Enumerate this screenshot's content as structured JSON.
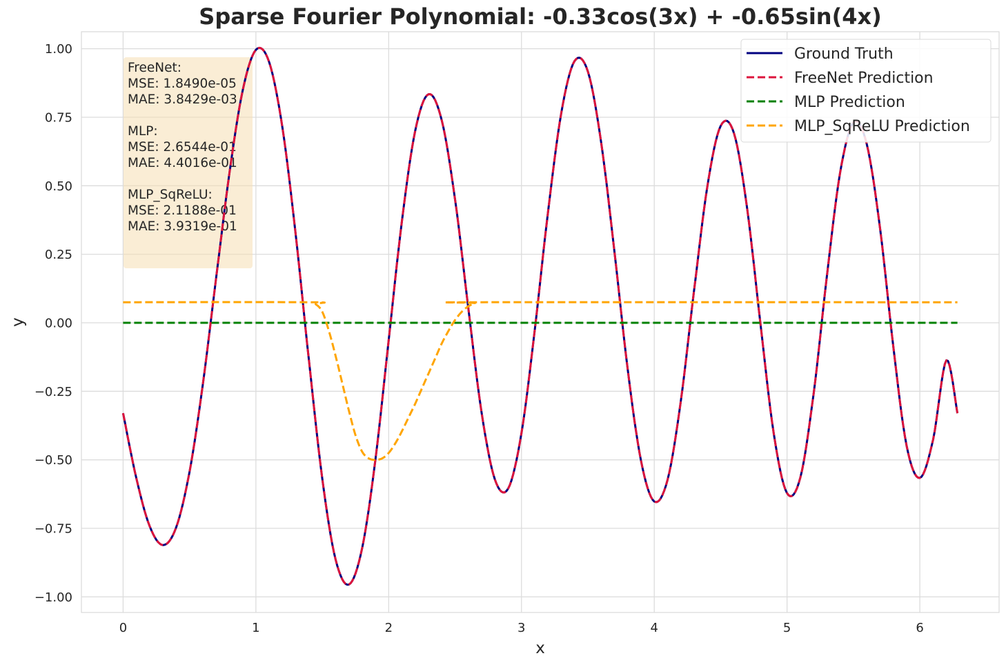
{
  "chart_data": {
    "type": "line",
    "title": "Sparse Fourier Polynomial: -0.33cos(3x) + -0.65sin(4x)",
    "xlabel": "x",
    "ylabel": "y",
    "xlim": [
      -0.314,
      6.597
    ],
    "ylim": [
      -1.057,
      1.062
    ],
    "xticks": [
      0,
      1,
      2,
      3,
      4,
      5,
      6
    ],
    "xtick_labels": [
      "0",
      "1",
      "2",
      "3",
      "4",
      "5",
      "6"
    ],
    "yticks": [
      1.0,
      0.75,
      0.5,
      0.25,
      0.0,
      -0.25,
      -0.5,
      -0.75,
      -1.0
    ],
    "ytick_labels": [
      "1.00",
      "0.75",
      "0.50",
      "0.25",
      "0.00",
      "−0.25",
      "−0.50",
      "−0.75",
      "−1.00"
    ],
    "grid": true,
    "legend_position": "top-right",
    "series": [
      {
        "name": "Ground Truth",
        "color": "#000080",
        "style": "solid",
        "x": [
          0,
          0.1,
          0.2,
          0.3,
          0.4,
          0.5,
          0.6,
          0.7,
          0.8,
          0.9,
          1.0,
          1.1,
          1.2,
          1.3,
          1.4,
          1.5,
          1.6,
          1.7,
          1.8,
          1.9,
          2.0,
          2.1,
          2.2,
          2.3,
          2.4,
          2.5,
          2.6,
          2.7,
          2.8,
          2.9,
          3.0,
          3.1,
          3.2,
          3.3,
          3.4,
          3.5,
          3.6,
          3.7,
          3.8,
          3.9,
          4.0,
          4.1,
          4.2,
          4.3,
          4.4,
          4.5,
          4.6,
          4.7,
          4.8,
          4.9,
          5.0,
          5.1,
          5.2,
          5.3,
          5.4,
          5.5,
          5.6,
          5.7,
          5.8,
          5.9,
          6.0,
          6.1,
          6.2,
          6.283
        ],
        "y": [
          -0.33,
          -0.568,
          -0.742,
          -0.811,
          -0.746,
          -0.544,
          -0.226,
          0.161,
          0.544,
          0.846,
          0.996,
          0.951,
          0.711,
          0.321,
          -0.14,
          -0.569,
          -0.863,
          -0.955,
          -0.823,
          -0.499,
          -0.064,
          0.373,
          0.701,
          0.834,
          0.738,
          0.45,
          0.052,
          -0.328,
          -0.572,
          -0.605,
          -0.402,
          -0.027,
          0.405,
          0.766,
          0.955,
          0.917,
          0.659,
          0.26,
          -0.169,
          -0.503,
          -0.652,
          -0.573,
          -0.286,
          0.118,
          0.498,
          0.718,
          0.692,
          0.416,
          -0.005,
          -0.404,
          -0.622,
          -0.565,
          -0.259,
          0.17,
          0.548,
          0.731,
          0.653,
          0.346,
          -0.085,
          -0.448,
          -0.566,
          -0.426,
          -0.137,
          -0.33
        ]
      },
      {
        "name": "FreeNet Prediction",
        "color": "#dc143c",
        "style": "dashed",
        "x": [
          0,
          0.1,
          0.2,
          0.3,
          0.4,
          0.5,
          0.6,
          0.7,
          0.8,
          0.9,
          1.0,
          1.1,
          1.2,
          1.3,
          1.4,
          1.5,
          1.6,
          1.7,
          1.8,
          1.9,
          2.0,
          2.1,
          2.2,
          2.3,
          2.4,
          2.5,
          2.6,
          2.7,
          2.8,
          2.9,
          3.0,
          3.1,
          3.2,
          3.3,
          3.4,
          3.5,
          3.6,
          3.7,
          3.8,
          3.9,
          4.0,
          4.1,
          4.2,
          4.3,
          4.4,
          4.5,
          4.6,
          4.7,
          4.8,
          4.9,
          5.0,
          5.1,
          5.2,
          5.3,
          5.4,
          5.5,
          5.6,
          5.7,
          5.8,
          5.9,
          6.0,
          6.1,
          6.2,
          6.283
        ],
        "y": [
          -0.33,
          -0.568,
          -0.742,
          -0.811,
          -0.746,
          -0.544,
          -0.226,
          0.161,
          0.544,
          0.846,
          0.996,
          0.951,
          0.711,
          0.321,
          -0.14,
          -0.569,
          -0.863,
          -0.955,
          -0.823,
          -0.499,
          -0.064,
          0.373,
          0.701,
          0.834,
          0.738,
          0.45,
          0.052,
          -0.328,
          -0.572,
          -0.605,
          -0.402,
          -0.027,
          0.405,
          0.766,
          0.955,
          0.917,
          0.659,
          0.26,
          -0.169,
          -0.503,
          -0.652,
          -0.573,
          -0.286,
          0.118,
          0.498,
          0.718,
          0.692,
          0.416,
          -0.005,
          -0.404,
          -0.622,
          -0.565,
          -0.259,
          0.17,
          0.548,
          0.731,
          0.653,
          0.346,
          -0.085,
          -0.448,
          -0.566,
          -0.426,
          -0.137,
          -0.33
        ]
      },
      {
        "name": "MLP Prediction",
        "color": "#008000",
        "style": "dashed",
        "x": [
          0,
          6.283
        ],
        "y": [
          0.0,
          0.0
        ]
      },
      {
        "name": "MLP_SqReLU Prediction",
        "color": "#ffa500",
        "style": "dashed",
        "x": [
          0,
          1.4,
          1.45,
          1.5,
          1.55,
          1.6,
          1.65,
          1.7,
          1.75,
          1.8,
          1.85,
          1.9,
          1.95,
          2.0,
          2.05,
          2.1,
          2.15,
          2.2,
          2.25,
          2.3,
          2.35,
          2.4,
          2.45,
          2.5,
          2.55,
          2.6,
          2.65,
          2.7,
          6.283
        ],
        "y": [
          0.075,
          0.075,
          0.068,
          0.04,
          -0.03,
          -0.12,
          -0.22,
          -0.32,
          -0.41,
          -0.47,
          -0.495,
          -0.5,
          -0.495,
          -0.475,
          -0.44,
          -0.395,
          -0.345,
          -0.295,
          -0.24,
          -0.185,
          -0.13,
          -0.075,
          -0.03,
          0.01,
          0.04,
          0.06,
          0.072,
          0.075,
          0.075
        ]
      }
    ],
    "stats_box": {
      "lines": [
        "FreeNet:",
        "MSE: 1.8490e-05",
        "MAE: 3.8429e-03",
        "",
        "MLP:",
        "MSE: 2.6544e-01",
        "MAE: 4.4016e-01",
        "",
        "MLP_SqReLU:",
        "MSE: 2.1188e-01",
        "MAE: 3.9319e-01"
      ],
      "background": "#f5deb3"
    }
  }
}
